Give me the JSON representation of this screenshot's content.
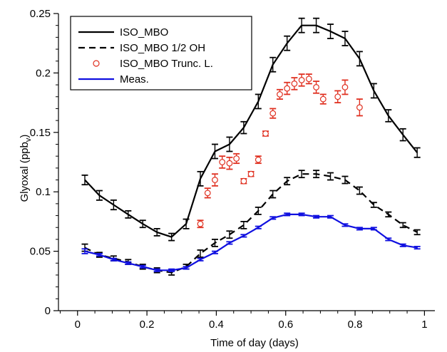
{
  "chart_data": {
    "type": "line",
    "xlabel": "Time of day (days)",
    "ylabel_main": "Glyoxal (ppb",
    "ylabel_sub": "v",
    "ylabel_tail": ")",
    "xlim": [
      -0.055,
      1.03
    ],
    "ylim": [
      0,
      0.25
    ],
    "xticks": [
      0,
      0.2,
      0.4,
      0.6,
      0.8,
      1
    ],
    "xtick_labels": [
      "0",
      "0.2",
      "0.4",
      "0.6",
      "0.8",
      "1"
    ],
    "yticks": [
      0,
      0.05,
      0.1,
      0.15,
      0.2,
      0.25
    ],
    "ytick_labels": [
      "0",
      "0.05",
      "0.1",
      "0.15",
      "0.2",
      "0.25"
    ],
    "x": [
      0.021,
      0.063,
      0.104,
      0.146,
      0.188,
      0.229,
      0.271,
      0.313,
      0.354,
      0.396,
      0.438,
      0.479,
      0.521,
      0.563,
      0.604,
      0.646,
      0.688,
      0.729,
      0.771,
      0.813,
      0.854,
      0.896,
      0.938,
      0.979
    ],
    "legend_position": "top-left",
    "series": [
      {
        "name": "ISO_MBO",
        "style": "solid",
        "color": "#000000",
        "values": [
          0.11,
          0.097,
          0.089,
          0.081,
          0.073,
          0.066,
          0.062,
          0.073,
          0.111,
          0.134,
          0.14,
          0.154,
          0.176,
          0.207,
          0.225,
          0.24,
          0.24,
          0.235,
          0.229,
          0.212,
          0.185,
          0.164,
          0.148,
          0.133
        ],
        "errors": [
          0.004,
          0.004,
          0.004,
          0.003,
          0.003,
          0.003,
          0.003,
          0.004,
          0.006,
          0.006,
          0.006,
          0.005,
          0.006,
          0.006,
          0.006,
          0.006,
          0.006,
          0.006,
          0.006,
          0.006,
          0.006,
          0.005,
          0.005,
          0.004
        ]
      },
      {
        "name": "ISO_MBO 1/2 OH",
        "style": "dashed",
        "color": "#000000",
        "values": [
          0.053,
          0.047,
          0.044,
          0.041,
          0.037,
          0.034,
          0.032,
          0.037,
          0.048,
          0.057,
          0.064,
          0.072,
          0.084,
          0.098,
          0.109,
          0.115,
          0.115,
          0.113,
          0.11,
          0.101,
          0.089,
          0.081,
          0.072,
          0.066
        ],
        "errors": [
          0.003,
          0.002,
          0.002,
          0.002,
          0.002,
          0.002,
          0.002,
          0.002,
          0.003,
          0.003,
          0.003,
          0.003,
          0.003,
          0.003,
          0.003,
          0.003,
          0.003,
          0.003,
          0.003,
          0.003,
          0.002,
          0.002,
          0.002,
          0.002
        ]
      },
      {
        "name": "ISO_MBO Trunc. L.",
        "style": "markers",
        "color": "#e03020",
        "x": [
          0.354,
          0.375,
          0.396,
          0.417,
          0.438,
          0.458,
          0.479,
          0.5,
          0.521,
          0.542,
          0.563,
          0.583,
          0.604,
          0.625,
          0.646,
          0.667,
          0.688,
          0.708,
          0.75,
          0.771,
          0.813
        ],
        "values": [
          0.073,
          0.099,
          0.11,
          0.125,
          0.124,
          0.128,
          0.109,
          0.115,
          0.127,
          0.149,
          0.166,
          0.182,
          0.187,
          0.191,
          0.194,
          0.195,
          0.188,
          0.178,
          0.18,
          0.188,
          0.171
        ],
        "errors": [
          0.003,
          0.004,
          0.005,
          0.005,
          0.005,
          0.004,
          0.002,
          0.002,
          0.003,
          0.002,
          0.004,
          0.004,
          0.005,
          0.005,
          0.005,
          0.004,
          0.005,
          0.004,
          0.005,
          0.006,
          0.007
        ]
      },
      {
        "name": "Meas.",
        "style": "solid",
        "color": "#1010e0",
        "values": [
          0.05,
          0.047,
          0.043,
          0.04,
          0.037,
          0.034,
          0.034,
          0.036,
          0.043,
          0.049,
          0.057,
          0.063,
          0.07,
          0.078,
          0.081,
          0.081,
          0.079,
          0.079,
          0.072,
          0.069,
          0.069,
          0.06,
          0.055,
          0.053
        ],
        "errors": [
          0.002,
          0.001,
          0.001,
          0.001,
          0.001,
          0.001,
          0.001,
          0.001,
          0.001,
          0.001,
          0.001,
          0.001,
          0.001,
          0.001,
          0.001,
          0.001,
          0.001,
          0.001,
          0.001,
          0.001,
          0.001,
          0.001,
          0.001,
          0.001
        ]
      }
    ]
  }
}
